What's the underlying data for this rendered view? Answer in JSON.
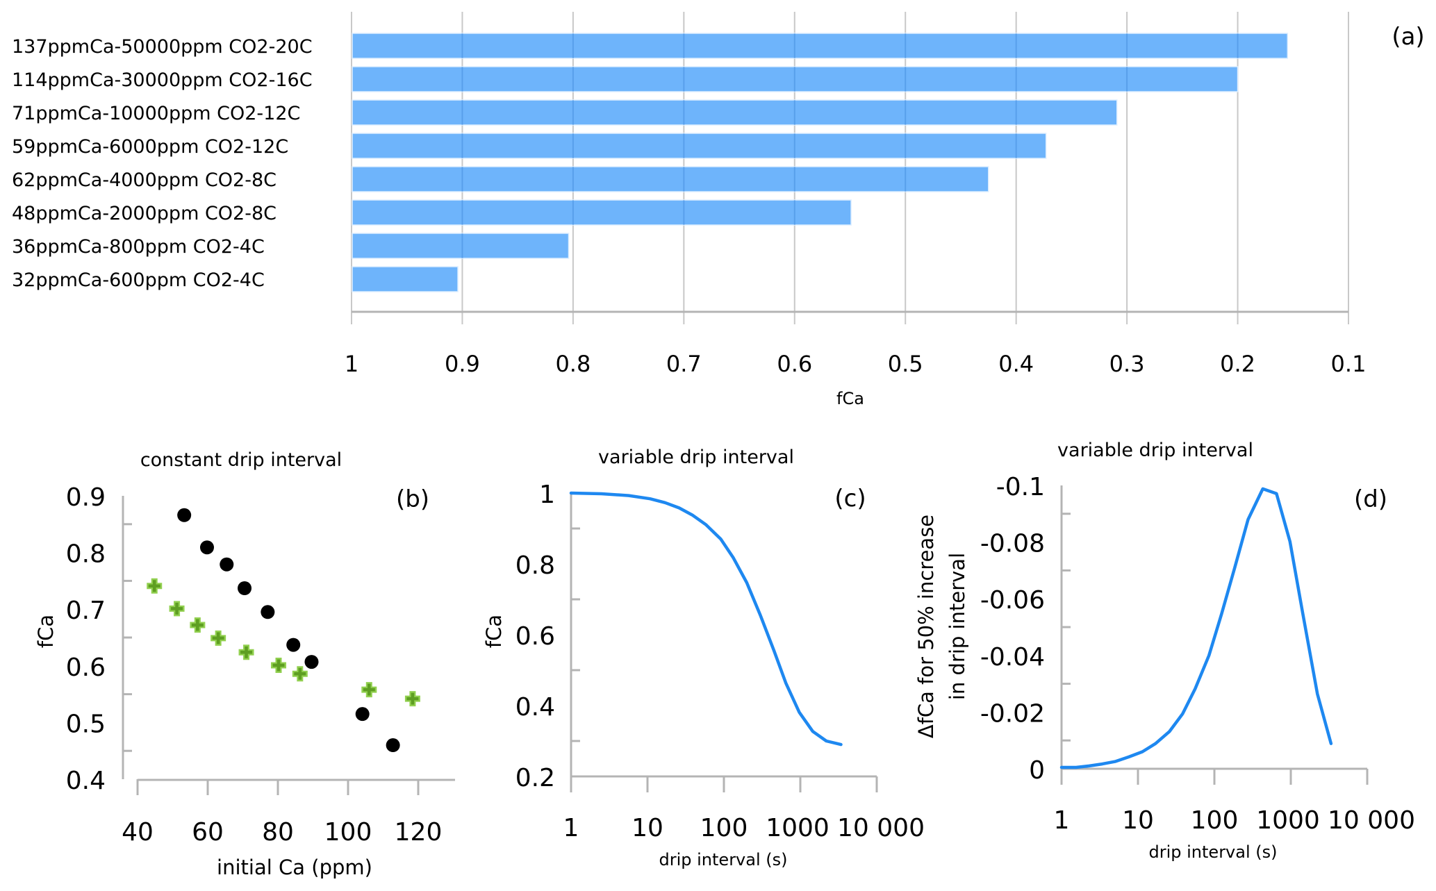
{
  "chart_data": [
    {
      "id": "a",
      "type": "bar",
      "orientation": "horizontal",
      "panel_label": "(a)",
      "title": "",
      "xlabel": "fCa",
      "ylabel": "",
      "xlim": [
        1,
        0.1
      ],
      "x_reversed": true,
      "xticks": [
        "1",
        "0.9",
        "0.8",
        "0.7",
        "0.6",
        "0.5",
        "0.4",
        "0.3",
        "0.2",
        "0.1"
      ],
      "xtick_values": [
        1,
        0.9,
        0.8,
        0.7,
        0.6,
        0.5,
        0.4,
        0.3,
        0.2,
        0.1
      ],
      "grid": true,
      "color": "#6eb4fb",
      "categories": [
        "137ppmCa-50000ppm CO2-20C",
        "114ppmCa-30000ppm CO2-16C",
        "71ppmCa-10000ppm CO2-12C",
        "59ppmCa-6000ppm CO2-12C",
        "62ppmCa-4000ppm CO2-8C",
        "48ppmCa-2000ppm CO2-8C",
        "36ppmCa-800ppm CO2-4C",
        "32ppmCa-600ppm CO2-4C"
      ],
      "values": [
        0.155,
        0.2,
        0.309,
        0.373,
        0.425,
        0.549,
        0.804,
        0.904
      ]
    },
    {
      "id": "b",
      "type": "scatter",
      "panel_label": "(b)",
      "title": "constant drip interval",
      "xlabel": "initial Ca (ppm)",
      "ylabel": "fCa",
      "xlim": [
        40,
        130
      ],
      "ylim": [
        0.4,
        0.9
      ],
      "xticks": [
        "40",
        "60",
        "80",
        "100",
        "120"
      ],
      "xtick_values": [
        40,
        60,
        80,
        100,
        120
      ],
      "yticks": [
        "0.9",
        "0.8",
        "0.7",
        "0.6",
        "0.5",
        "0.4"
      ],
      "ytick_values": [
        0.9,
        0.8,
        0.7,
        0.6,
        0.5,
        0.4
      ],
      "grid": false,
      "legend": "none",
      "series": [
        {
          "name": "series-1 (black circles)",
          "marker": "circle",
          "color": "#000000",
          "x": [
            53.3,
            59.8,
            65.4,
            70.5,
            77.1,
            84.4,
            89.6,
            104.1,
            112.8
          ],
          "y": [
            0.866,
            0.809,
            0.779,
            0.737,
            0.695,
            0.637,
            0.607,
            0.515,
            0.46
          ]
        },
        {
          "name": "series-2 (green crosses)",
          "marker": "cross",
          "color": "#70ad47",
          "x": [
            44.8,
            51.2,
            57.1,
            63.0,
            71.0,
            80.2,
            86.3,
            106.0,
            118.4
          ],
          "y": [
            0.741,
            0.701,
            0.672,
            0.649,
            0.624,
            0.601,
            0.586,
            0.558,
            0.542
          ]
        }
      ]
    },
    {
      "id": "c",
      "type": "line",
      "panel_label": "(c)",
      "title": "variable drip interval",
      "xlabel": "drip interval (s)",
      "ylabel": "fCa",
      "xscale": "log",
      "xlim": [
        1,
        10000
      ],
      "ylim": [
        0.2,
        1.0
      ],
      "xticks": [
        "1",
        "10",
        "100",
        "1000",
        "10 000"
      ],
      "xtick_values": [
        1,
        10,
        100,
        1000,
        10000
      ],
      "yticks": [
        "1",
        "0.8",
        "0.6",
        "0.4",
        "0.2"
      ],
      "ytick_values": [
        1.0,
        0.8,
        0.6,
        0.4,
        0.2
      ],
      "grid": false,
      "legend": "none",
      "series": [
        {
          "name": "fCa",
          "color": "#1e88f0",
          "x": [
            1,
            2.5,
            5.7,
            10.8,
            17,
            26,
            38.6,
            58,
            91,
            133,
            199,
            300,
            450,
            646,
            970,
            1455,
            2190,
            3400
          ],
          "y": [
            1.0,
            0.998,
            0.993,
            0.984,
            0.973,
            0.958,
            0.938,
            0.911,
            0.87,
            0.817,
            0.747,
            0.655,
            0.556,
            0.464,
            0.381,
            0.327,
            0.3,
            0.29
          ]
        }
      ]
    },
    {
      "id": "d",
      "type": "line",
      "panel_label": "(d)",
      "title": "variable drip interval",
      "xlabel": "drip interval (s)",
      "ylabel": [
        "ΔfCa for 50% increase",
        "in drip interval"
      ],
      "xscale": "log",
      "xlim": [
        1,
        10000
      ],
      "ylim": [
        0,
        -0.1
      ],
      "y_reversed": true,
      "xticks": [
        "1",
        "10",
        "100",
        "1000",
        "10 000"
      ],
      "xtick_values": [
        1,
        10,
        100,
        1000,
        10000
      ],
      "yticks": [
        "-0.1",
        "-0.08",
        "-0.06",
        "-0.04",
        "-0.02",
        "0"
      ],
      "ytick_values": [
        -0.1,
        -0.08,
        -0.06,
        -0.04,
        -0.02,
        0
      ],
      "grid": false,
      "legend": "none",
      "series": [
        {
          "name": "ΔfCa",
          "color": "#1e88f0",
          "x": [
            1,
            1.55,
            2.3,
            3.4,
            5.1,
            7.6,
            11.4,
            17,
            25.7,
            38.4,
            56,
            85,
            124,
            184,
            276,
            430,
            650,
            975,
            1430,
            2230,
            3360
          ],
          "y": [
            -0.0005,
            -0.0005,
            -0.001,
            -0.0017,
            -0.0026,
            -0.0042,
            -0.006,
            -0.0089,
            -0.0131,
            -0.0194,
            -0.0282,
            -0.04,
            -0.0546,
            -0.0708,
            -0.088,
            -0.0988,
            -0.0971,
            -0.0802,
            -0.055,
            -0.0264,
            -0.0089
          ]
        }
      ]
    }
  ]
}
